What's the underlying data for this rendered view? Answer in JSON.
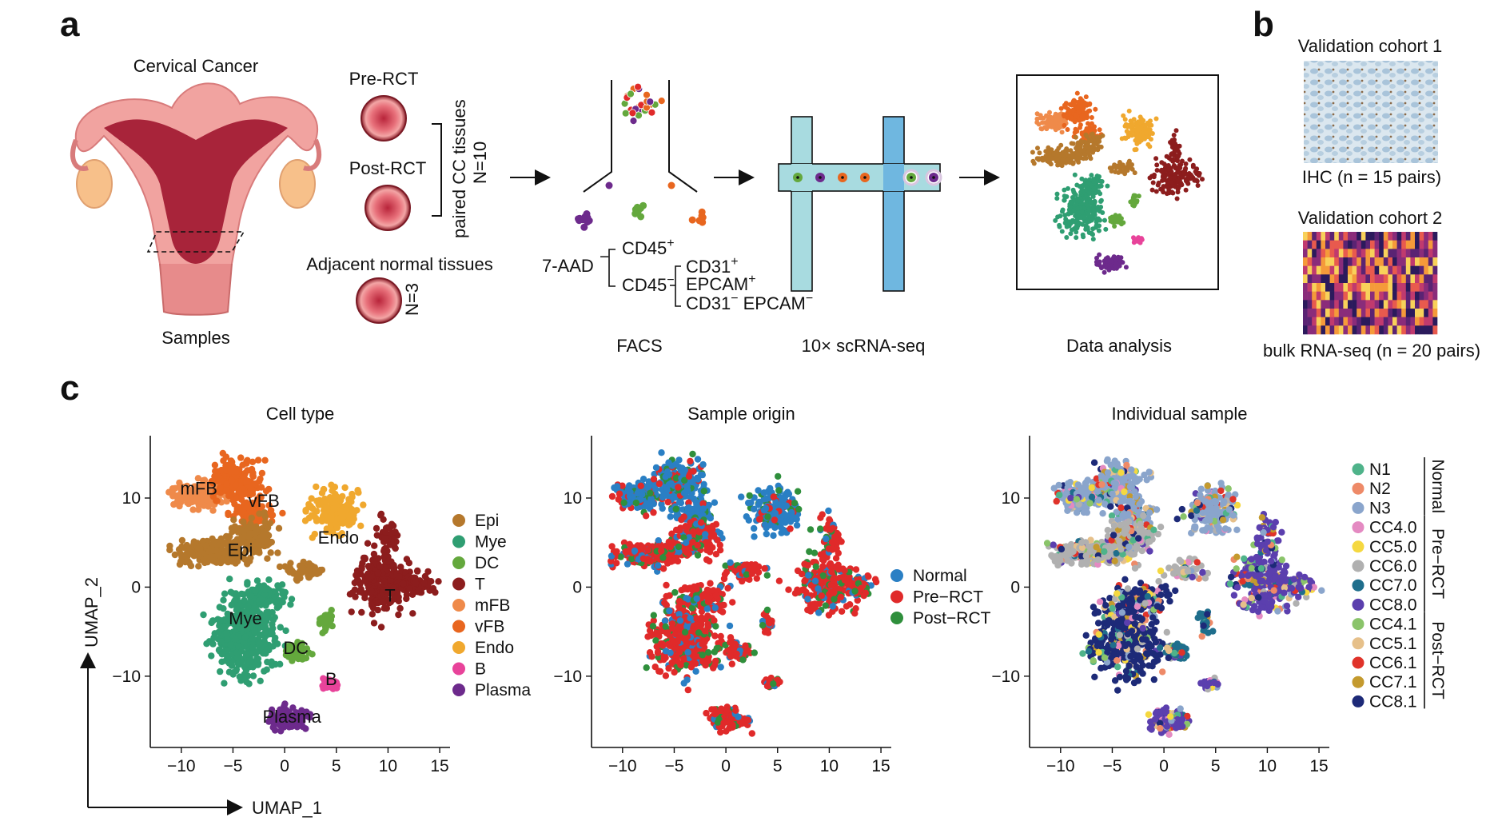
{
  "panels": {
    "a": {
      "label": "a",
      "cancer_title": "Cervical Cancer",
      "samples_label": "Samples",
      "pre_label": "Pre-RCT",
      "post_label": "Post-RCT",
      "paired_label": "paired CC tissues",
      "paired_n": "N=10",
      "adjacent_label": "Adjacent normal tissues",
      "adjacent_n": "N=3",
      "facs": {
        "gate": "7-AAD",
        "gate_sign": "−",
        "cd45": "CD45",
        "cd31": "CD31",
        "epcam": "EPCAM",
        "plus": "+",
        "minus": "−",
        "step_label": "FACS"
      },
      "seq_label": "10× scRNA-seq",
      "analysis_label": "Data analysis"
    },
    "b": {
      "label": "b",
      "cohort1_title": "Validation cohort 1",
      "cohort1_caption": "IHC (n = 15 pairs)",
      "cohort2_title": "Validation cohort 2",
      "cohort2_caption": "bulk RNA-seq (n = 20 pairs)"
    },
    "c": {
      "label": "c",
      "x_axis_arrow": "UMAP_1",
      "y_axis_arrow": "UMAP_2"
    }
  },
  "chart_data": [
    {
      "type": "scatter",
      "title": "Cell type",
      "xlim": [
        -13,
        16
      ],
      "ylim": [
        -18,
        17
      ],
      "x_ticks": [
        -10,
        -5,
        0,
        5,
        10,
        15
      ],
      "y_ticks": [
        -10,
        0,
        10
      ],
      "cluster_labels": [
        "mFB",
        "vFB",
        "Epi",
        "Endo",
        "Mye",
        "T",
        "DC",
        "B",
        "Plasma"
      ],
      "legend": [
        "Epi",
        "Mye",
        "DC",
        "T",
        "mFB",
        "vFB",
        "Endo",
        "B",
        "Plasma"
      ],
      "colors": {
        "Epi": "#b5782c",
        "Mye": "#2f9e72",
        "DC": "#64a83d",
        "T": "#8c1d1d",
        "mFB": "#ef8a4a",
        "vFB": "#e8661f",
        "Endo": "#f0a82e",
        "B": "#e8439a",
        "Plasma": "#6d2a8c"
      }
    },
    {
      "type": "scatter",
      "title": "Sample origin",
      "xlim": [
        -13,
        16
      ],
      "ylim": [
        -18,
        17
      ],
      "x_ticks": [
        -10,
        -5,
        0,
        5,
        10,
        15
      ],
      "y_ticks": [
        -10,
        0,
        10
      ],
      "legend": [
        "Normal",
        "Pre−RCT",
        "Post−RCT"
      ],
      "colors": {
        "Normal": "#2a7fc4",
        "Pre−RCT": "#e02a2a",
        "Post−RCT": "#2f8f3c"
      }
    },
    {
      "type": "scatter",
      "title": "Individual sample",
      "xlim": [
        -13,
        16
      ],
      "ylim": [
        -18,
        17
      ],
      "x_ticks": [
        -10,
        -5,
        0,
        5,
        10,
        15
      ],
      "y_ticks": [
        -10,
        0,
        10
      ],
      "legend": [
        "N1",
        "N2",
        "N3",
        "CC4.0",
        "CC5.0",
        "CC6.0",
        "CC7.0",
        "CC8.0",
        "CC4.1",
        "CC5.1",
        "CC6.1",
        "CC7.1",
        "CC8.1"
      ],
      "groups": [
        "Normal",
        "Pre−RCT",
        "Post−RCT"
      ],
      "colors": {
        "N1": "#4fb38a",
        "N2": "#ee8a68",
        "N3": "#8aa5cc",
        "CC4.0": "#e48ac2",
        "CC5.0": "#f5d840",
        "CC6.0": "#b0b0b0",
        "CC7.0": "#1f6e8c",
        "CC8.0": "#5b3fae",
        "CC4.1": "#8ac46a",
        "CC5.1": "#e6c08a",
        "CC6.1": "#e0332a",
        "CC7.1": "#c49a2e",
        "CC8.1": "#1d2a78"
      }
    }
  ]
}
